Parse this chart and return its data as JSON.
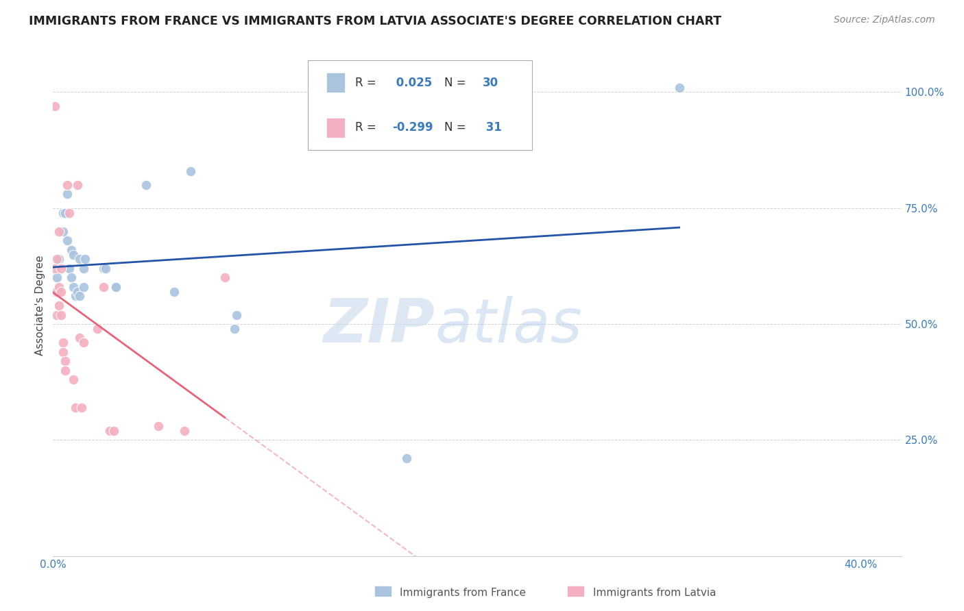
{
  "title": "IMMIGRANTS FROM FRANCE VS IMMIGRANTS FROM LATVIA ASSOCIATE'S DEGREE CORRELATION CHART",
  "source": "Source: ZipAtlas.com",
  "xlabel_label": "Immigrants from France",
  "ylabel_label": "Associate's Degree",
  "x_axis_label2": "Immigrants from Latvia",
  "xlim": [
    0.0,
    0.42
  ],
  "ylim": [
    0.0,
    1.08
  ],
  "france_R": "0.025",
  "france_N": "30",
  "latvia_R": "-0.299",
  "latvia_N": "31",
  "france_color": "#aac4e0",
  "latvia_color": "#f4b0c0",
  "france_line_color": "#2255aa",
  "latvia_line_color": "#e8627a",
  "france_x": [
    0.002,
    0.003,
    0.005,
    0.005,
    0.006,
    0.007,
    0.007,
    0.008,
    0.009,
    0.009,
    0.01,
    0.01,
    0.011,
    0.012,
    0.013,
    0.013,
    0.015,
    0.015,
    0.016,
    0.025,
    0.026,
    0.031,
    0.031,
    0.046,
    0.06,
    0.068,
    0.09,
    0.091,
    0.175,
    0.31
  ],
  "france_y": [
    0.6,
    0.64,
    0.74,
    0.7,
    0.74,
    0.78,
    0.68,
    0.62,
    0.66,
    0.6,
    0.58,
    0.65,
    0.56,
    0.57,
    0.56,
    0.64,
    0.58,
    0.62,
    0.64,
    0.62,
    0.62,
    0.58,
    0.58,
    0.8,
    0.57,
    0.83,
    0.49,
    0.52,
    0.21,
    1.01
  ],
  "latvia_x": [
    0.001,
    0.001,
    0.001,
    0.002,
    0.002,
    0.002,
    0.003,
    0.003,
    0.003,
    0.004,
    0.004,
    0.004,
    0.005,
    0.005,
    0.006,
    0.006,
    0.007,
    0.008,
    0.01,
    0.011,
    0.012,
    0.013,
    0.014,
    0.015,
    0.022,
    0.025,
    0.028,
    0.03,
    0.052,
    0.065,
    0.085
  ],
  "latvia_y": [
    0.97,
    0.62,
    0.57,
    0.64,
    0.57,
    0.52,
    0.7,
    0.58,
    0.54,
    0.62,
    0.57,
    0.52,
    0.46,
    0.44,
    0.42,
    0.4,
    0.8,
    0.74,
    0.38,
    0.32,
    0.8,
    0.47,
    0.32,
    0.46,
    0.49,
    0.58,
    0.27,
    0.27,
    0.28,
    0.27,
    0.6
  ],
  "watermark_zip": "ZIP",
  "watermark_atlas": "atlas",
  "background_color": "#ffffff",
  "grid_color": "#cccccc"
}
